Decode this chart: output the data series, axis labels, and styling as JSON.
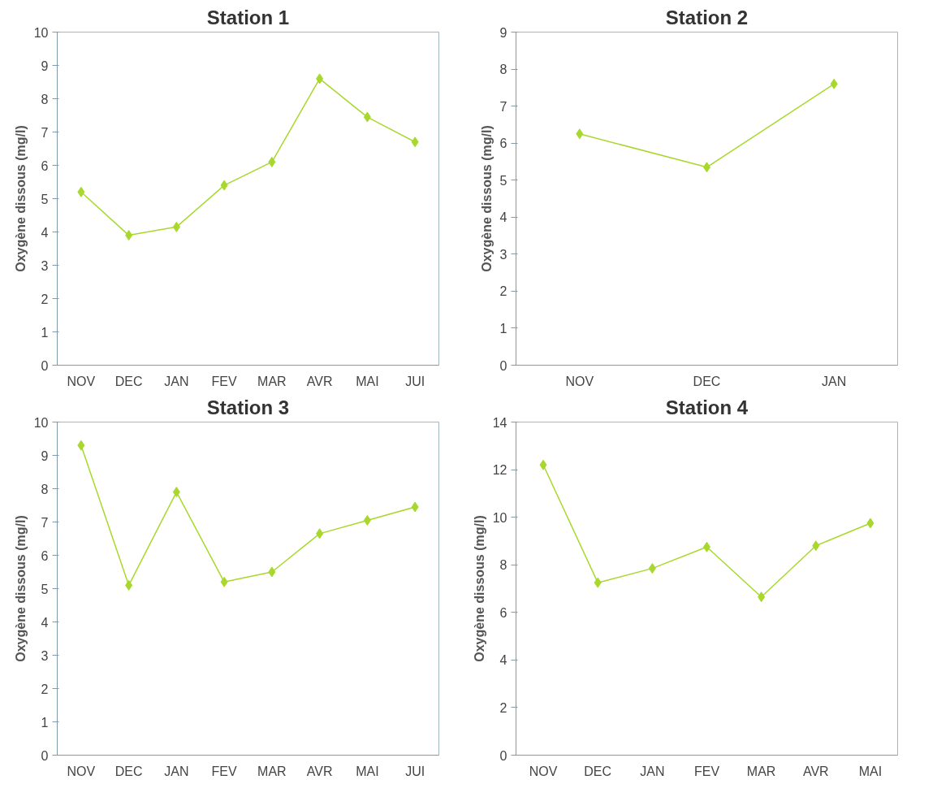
{
  "chart_data": [
    {
      "type": "line",
      "title": "Station 1",
      "ylabel": "Oxygène dissous (mg/l)",
      "categories": [
        "NOV",
        "DEC",
        "JAN",
        "FEV",
        "MAR",
        "AVR",
        "MAI",
        "JUI"
      ],
      "series": [
        {
          "color": "#a8d82c",
          "values": [
            5.2,
            3.9,
            4.15,
            5.4,
            6.1,
            8.6,
            7.45,
            6.7
          ]
        }
      ],
      "ylim": [
        0,
        10
      ],
      "yticks": [
        0,
        1,
        2,
        3,
        4,
        5,
        6,
        7,
        8,
        9,
        10
      ],
      "grid": false,
      "marker": "diamond",
      "line_style": "solid"
    },
    {
      "type": "line",
      "title": "Station 2",
      "ylabel": "Oxygène dissous (mg/l)",
      "categories": [
        "NOV",
        "DEC",
        "JAN"
      ],
      "series": [
        {
          "color": "#a8d82c",
          "values": [
            6.25,
            5.35,
            7.6
          ]
        }
      ],
      "ylim": [
        0,
        9
      ],
      "yticks": [
        0,
        1,
        2,
        3,
        4,
        5,
        6,
        7,
        8,
        9
      ],
      "grid": false,
      "marker": "diamond",
      "line_style": "solid"
    },
    {
      "type": "line",
      "title": "Station 3",
      "ylabel": "Oxygène dissous (mg/l)",
      "categories": [
        "NOV",
        "DEC",
        "JAN",
        "FEV",
        "MAR",
        "AVR",
        "MAI",
        "JUI"
      ],
      "series": [
        {
          "color": "#a8d82c",
          "values": [
            9.3,
            5.1,
            7.9,
            5.2,
            5.5,
            6.65,
            7.05,
            7.45
          ]
        }
      ],
      "ylim": [
        0,
        10
      ],
      "yticks": [
        0,
        1,
        2,
        3,
        4,
        5,
        6,
        7,
        8,
        9,
        10
      ],
      "grid": false,
      "marker": "diamond",
      "line_style": "solid"
    },
    {
      "type": "line",
      "title": "Station 4",
      "ylabel": "Oxygène dissous (mg/l)",
      "categories": [
        "NOV",
        "DEC",
        "JAN",
        "FEV",
        "MAR",
        "AVR",
        "MAI"
      ],
      "series": [
        {
          "color": "#a8d82c",
          "values": [
            12.2,
            7.25,
            7.85,
            8.75,
            6.65,
            8.8,
            9.75
          ]
        }
      ],
      "ylim": [
        0,
        14
      ],
      "yticks": [
        0,
        2,
        4,
        6,
        8,
        10,
        12,
        14
      ],
      "grid": false,
      "marker": "diamond",
      "line_style": "solid"
    }
  ]
}
